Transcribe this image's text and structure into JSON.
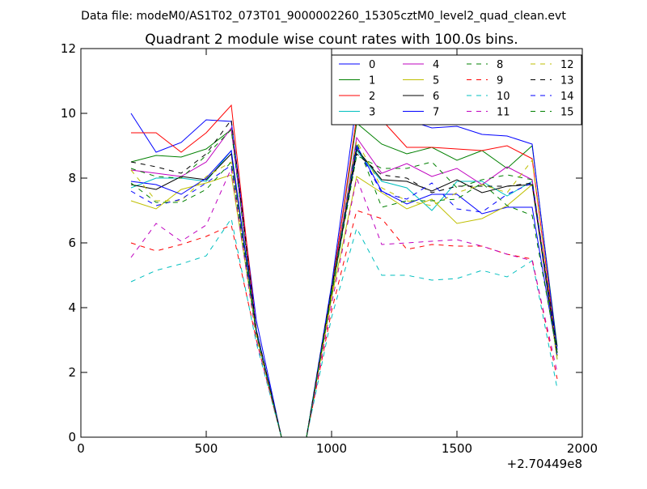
{
  "file_label": "Data file: modeM0/AS1T02_073T01_9000002260_15305cztM0_level2_quad_clean.evt",
  "chart_data": {
    "type": "line",
    "title": "Quadrant 2 module wise count rates with 100.0s bins.",
    "xlabel": "",
    "ylabel": "",
    "x_offset_label": "+2.70449e8",
    "xlim": [
      0,
      2000
    ],
    "ylim": [
      0,
      12
    ],
    "xticks": [
      0,
      500,
      1000,
      1500,
      2000
    ],
    "yticks": [
      0,
      2,
      4,
      6,
      8,
      10,
      12
    ],
    "grid": false,
    "legend_position": "top-right",
    "x": [
      200,
      300,
      400,
      500,
      600,
      700,
      800,
      900,
      1000,
      1100,
      1200,
      1300,
      1400,
      1500,
      1600,
      1700,
      1800,
      1900
    ],
    "series": [
      {
        "name": "0",
        "color": "#0000ff",
        "dash": "solid",
        "values": [
          10.0,
          8.8,
          9.1,
          9.8,
          9.75,
          3.6,
          0,
          0,
          4.5,
          9.0,
          7.6,
          7.2,
          7.5,
          7.5,
          6.9,
          7.1,
          7.1,
          2.5
        ]
      },
      {
        "name": "1",
        "color": "#008000",
        "dash": "solid",
        "values": [
          8.5,
          8.7,
          8.65,
          8.9,
          9.5,
          3.3,
          0,
          0,
          4.6,
          9.7,
          9.05,
          8.75,
          8.95,
          8.55,
          8.85,
          8.3,
          9.0,
          2.8
        ]
      },
      {
        "name": "2",
        "color": "#ff0000",
        "dash": "solid",
        "values": [
          9.4,
          9.4,
          8.8,
          9.4,
          10.25,
          3.3,
          0,
          0,
          4.5,
          9.9,
          9.8,
          8.95,
          8.95,
          8.9,
          8.85,
          9.0,
          8.6,
          2.6
        ]
      },
      {
        "name": "3",
        "color": "#00bfbf",
        "dash": "solid",
        "values": [
          7.7,
          8.0,
          8.0,
          7.9,
          8.85,
          3.2,
          0,
          0,
          4.4,
          8.85,
          7.9,
          7.7,
          7.0,
          7.9,
          7.9,
          7.45,
          7.9,
          2.4
        ]
      },
      {
        "name": "4",
        "color": "#bf00bf",
        "dash": "solid",
        "values": [
          8.25,
          8.15,
          8.05,
          8.5,
          9.55,
          3.3,
          0,
          0,
          4.5,
          9.25,
          8.15,
          8.45,
          8.05,
          8.3,
          7.8,
          8.35,
          7.95,
          2.6
        ]
      },
      {
        "name": "5",
        "color": "#bfbf00",
        "dash": "solid",
        "values": [
          7.3,
          7.05,
          7.65,
          7.85,
          8.1,
          3.2,
          0,
          0,
          4.3,
          8.05,
          7.55,
          7.05,
          7.35,
          6.6,
          6.75,
          7.15,
          7.8,
          2.4
        ]
      },
      {
        "name": "6",
        "color": "#000000",
        "dash": "solid",
        "values": [
          7.8,
          7.65,
          8.05,
          7.95,
          8.75,
          3.3,
          0,
          0,
          4.4,
          8.9,
          7.95,
          7.9,
          7.6,
          7.95,
          7.55,
          7.75,
          7.8,
          2.5
        ]
      },
      {
        "name": "7",
        "color": "#0000ff",
        "dash": "solid",
        "values": [
          7.9,
          7.8,
          7.5,
          8.0,
          8.85,
          3.3,
          0,
          0,
          4.7,
          10.35,
          9.65,
          9.8,
          9.55,
          9.6,
          9.35,
          9.3,
          9.05,
          2.7
        ]
      },
      {
        "name": "8",
        "color": "#008000",
        "dash": "dashed",
        "values": [
          8.3,
          8.05,
          8.0,
          8.7,
          9.5,
          3.2,
          0,
          0,
          4.4,
          8.7,
          8.3,
          8.3,
          8.5,
          7.7,
          7.95,
          8.1,
          7.95,
          2.6
        ]
      },
      {
        "name": "9",
        "color": "#ff0000",
        "dash": "dashed",
        "values": [
          6.0,
          5.75,
          5.95,
          6.2,
          6.55,
          3.0,
          0,
          0,
          3.9,
          7.0,
          6.75,
          5.8,
          5.95,
          5.9,
          5.9,
          5.65,
          5.5,
          1.8
        ]
      },
      {
        "name": "10",
        "color": "#00bfbf",
        "dash": "dashed",
        "values": [
          4.8,
          5.15,
          5.35,
          5.6,
          6.75,
          2.9,
          0,
          0,
          3.7,
          6.45,
          5.0,
          5.0,
          4.85,
          4.9,
          5.15,
          4.95,
          5.45,
          1.5
        ]
      },
      {
        "name": "11",
        "color": "#bf00bf",
        "dash": "dashed",
        "values": [
          5.55,
          6.6,
          6.05,
          6.55,
          8.3,
          3.0,
          0,
          0,
          4.1,
          8.0,
          5.95,
          6.0,
          6.05,
          6.1,
          5.9,
          5.65,
          5.45,
          2.0
        ]
      },
      {
        "name": "12",
        "color": "#bfbf00",
        "dash": "dashed",
        "values": [
          8.25,
          7.3,
          7.3,
          8.05,
          8.5,
          3.1,
          0,
          0,
          4.4,
          9.15,
          7.7,
          7.3,
          7.15,
          7.55,
          7.8,
          7.55,
          8.55,
          2.5
        ]
      },
      {
        "name": "13",
        "color": "#000000",
        "dash": "dashed",
        "values": [
          8.5,
          8.35,
          8.15,
          8.75,
          9.8,
          3.3,
          0,
          0,
          4.6,
          8.75,
          8.1,
          8.0,
          7.55,
          7.75,
          7.75,
          7.75,
          7.85,
          2.7
        ]
      },
      {
        "name": "14",
        "color": "#0000ff",
        "dash": "dashed",
        "values": [
          7.6,
          7.15,
          7.35,
          7.85,
          8.4,
          3.2,
          0,
          0,
          4.5,
          8.95,
          7.55,
          7.35,
          7.85,
          7.05,
          6.95,
          7.5,
          7.85,
          2.5
        ]
      },
      {
        "name": "15",
        "color": "#008000",
        "dash": "dashed",
        "values": [
          7.85,
          7.25,
          7.25,
          7.65,
          8.5,
          3.2,
          0,
          0,
          4.5,
          9.1,
          7.1,
          7.3,
          7.3,
          7.35,
          7.85,
          7.15,
          6.85,
          2.6
        ]
      }
    ]
  }
}
